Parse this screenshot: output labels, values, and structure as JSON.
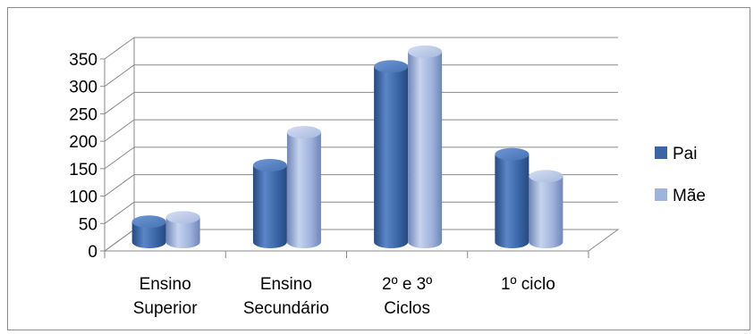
{
  "chart_data": {
    "type": "bar",
    "categories": [
      "Ensino Superior",
      "Ensino Secundário",
      "2º e 3º Ciclos",
      "1º ciclo"
    ],
    "category_label_lines": [
      [
        "Ensino",
        "Superior"
      ],
      [
        "Ensino",
        "Secundário"
      ],
      [
        "2º e 3º",
        "Ciclos"
      ],
      [
        "1º ciclo"
      ]
    ],
    "series": [
      {
        "name": "Pai",
        "values": [
          37,
          140,
          320,
          160
        ],
        "color": "#3a66a7"
      },
      {
        "name": "Mãe",
        "values": [
          45,
          200,
          347,
          120
        ],
        "color": "#9fb3dc"
      }
    ],
    "ylim": [
      0,
      350
    ],
    "yticks": [
      0,
      50,
      100,
      150,
      200,
      250,
      300,
      350
    ],
    "grid": true,
    "legend_position": "right",
    "style": "3d-cylinder"
  }
}
